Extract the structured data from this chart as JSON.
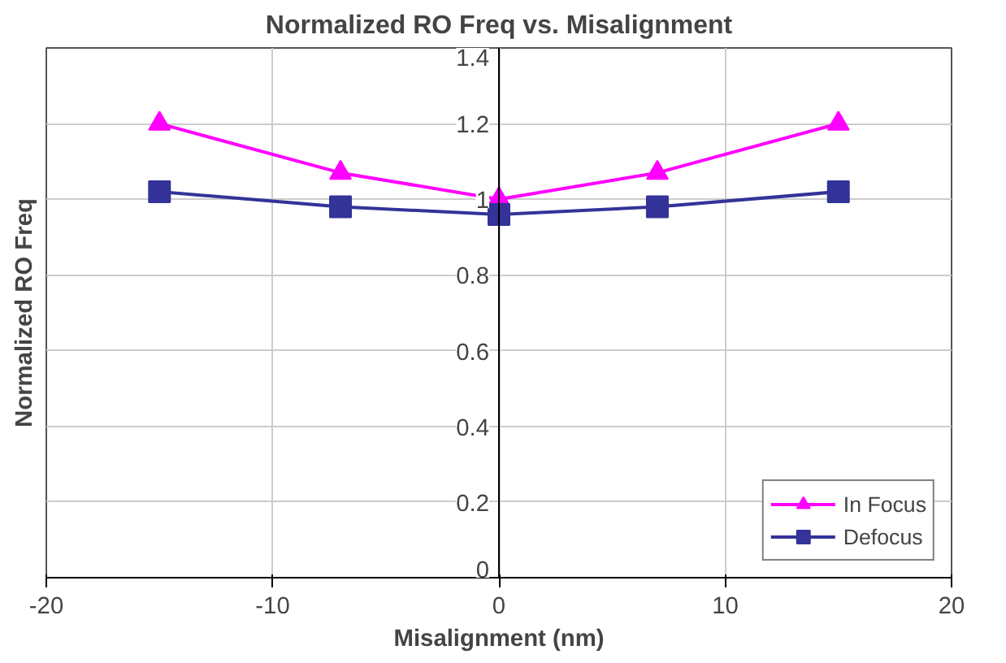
{
  "chart_data": {
    "type": "line",
    "title": "Normalized RO Freq vs. Misalignment",
    "xlabel": "Misalignment (nm)",
    "ylabel": "Normalized RO Freq",
    "x": [
      -15,
      -7,
      0,
      7,
      15
    ],
    "series": [
      {
        "name": "In Focus",
        "color": "#ff00ff",
        "marker": "triangle",
        "values": [
          1.2,
          1.07,
          1.0,
          1.07,
          1.2
        ]
      },
      {
        "name": "Defocus",
        "color": "#333399",
        "marker": "square",
        "values": [
          1.02,
          0.98,
          0.96,
          0.98,
          1.02
        ]
      }
    ],
    "xlim": [
      -20,
      20
    ],
    "xticks": [
      -20,
      -10,
      0,
      10,
      20
    ],
    "ylim": [
      0,
      1.4
    ],
    "yticks": [
      0,
      0.2,
      0.4,
      0.6,
      0.8,
      1,
      1.2,
      1.4
    ],
    "grid": true,
    "legend": "bottom right"
  }
}
